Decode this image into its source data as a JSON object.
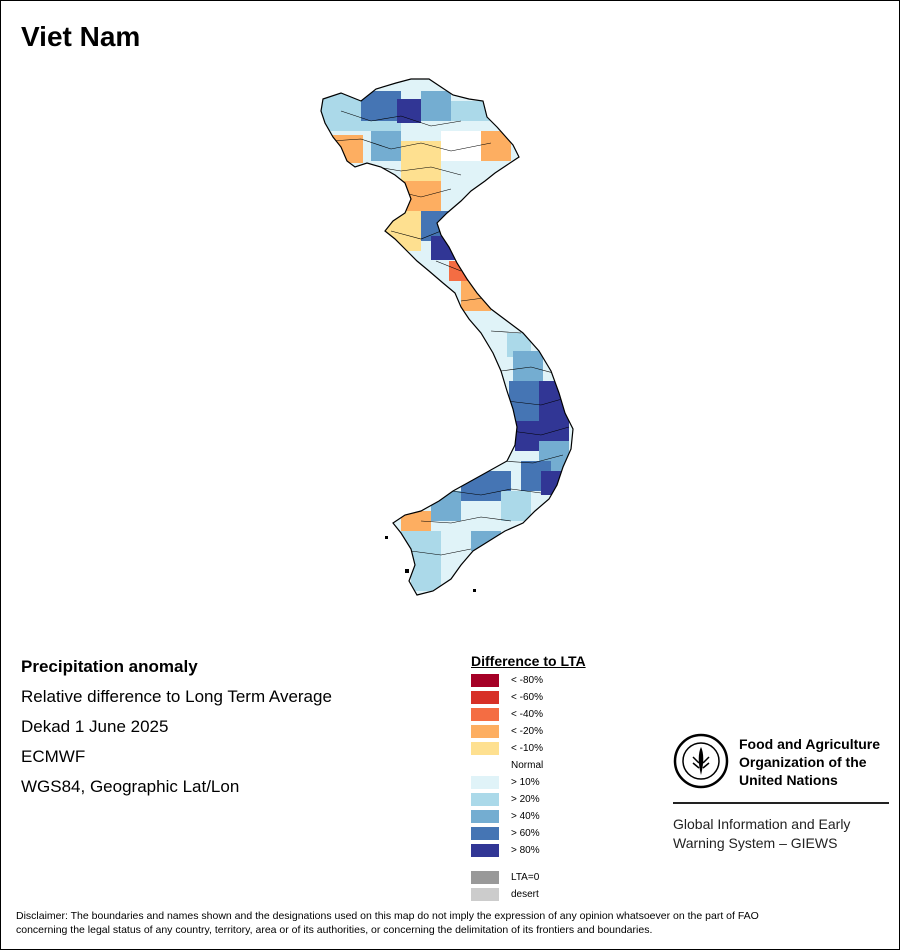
{
  "title": "Viet Nam",
  "info": {
    "product": "Precipitation anomaly",
    "description": "Relative difference to Long Term Average",
    "period": "Dekad 1 June 2025",
    "source": "ECMWF",
    "projection": "WGS84, Geographic Lat/Lon"
  },
  "legend": {
    "title": "Difference to LTA",
    "items": [
      {
        "label": "< -80%",
        "color": "#a50026"
      },
      {
        "label": "< -60%",
        "color": "#d73027"
      },
      {
        "label": "< -40%",
        "color": "#f46d43"
      },
      {
        "label": "< -20%",
        "color": "#fdae61"
      },
      {
        "label": "< -10%",
        "color": "#fee090"
      },
      {
        "label": "Normal",
        "color": "#ffffff"
      },
      {
        "label": "> 10%",
        "color": "#e0f3f8"
      },
      {
        "label": "> 20%",
        "color": "#abd9e9"
      },
      {
        "label": "> 40%",
        "color": "#74add1"
      },
      {
        "label": "> 60%",
        "color": "#4575b4"
      },
      {
        "label": "> 80%",
        "color": "#313695"
      }
    ],
    "extra": [
      {
        "label": "LTA=0",
        "color": "#999999"
      },
      {
        "label": "desert",
        "color": "#cccccc"
      }
    ]
  },
  "fao": {
    "name_line1": "Food and Agriculture",
    "name_line2": "Organization of the",
    "name_line3": "United Nations",
    "giews_line1": "Global Information and Early",
    "giews_line2": "Warning System – GIEWS"
  },
  "disclaimer_line1": "Disclaimer: The boundaries and names shown and the designations used on this map do not imply the expression of any opinion whatsoever on the part of FAO",
  "disclaimer_line2": "concerning the legal status of any country, territory, area or of its authorities, or concerning the delimitation of its frontiers and boundaries."
}
